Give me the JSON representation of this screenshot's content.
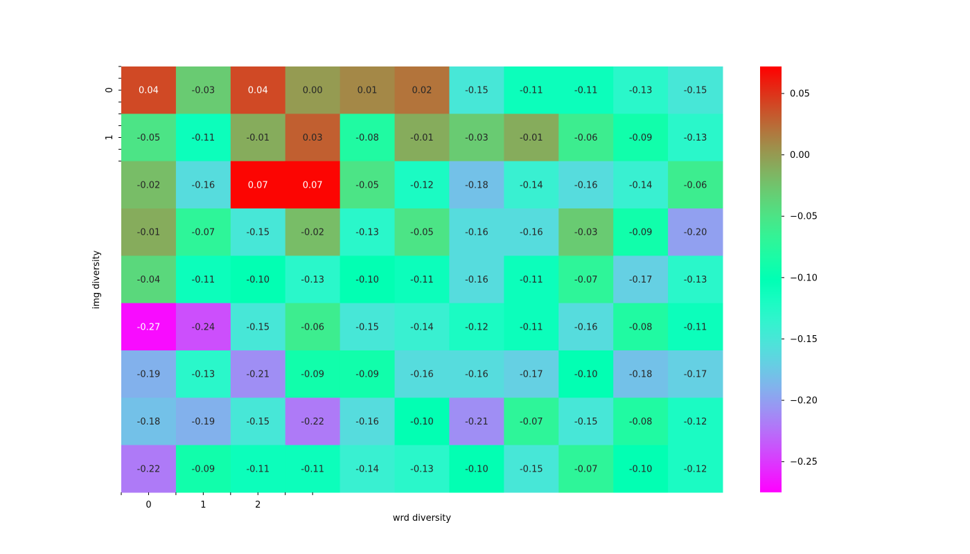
{
  "chart_data": {
    "type": "heatmap",
    "title": "",
    "xlabel": "wrd diversity",
    "ylabel": "img diversity",
    "x_tick_labels": [
      "0",
      "1",
      "2"
    ],
    "y_tick_labels": [
      "0",
      "1"
    ],
    "colormap": "rainbow",
    "value_range": [
      -0.275,
      0.072
    ],
    "colorbar_ticks": [
      "0.05",
      "0.00",
      "−0.05",
      "−0.10",
      "−0.15",
      "−0.20",
      "−0.25"
    ],
    "colorbar_tick_values": [
      0.05,
      0.0,
      -0.05,
      -0.1,
      -0.15,
      -0.2,
      -0.25
    ],
    "rows": 9,
    "cols": 11,
    "values": [
      [
        0.04,
        -0.03,
        0.04,
        0.0,
        0.01,
        0.02,
        -0.15,
        -0.11,
        -0.11,
        -0.13,
        -0.15
      ],
      [
        -0.05,
        -0.11,
        -0.01,
        0.03,
        -0.08,
        -0.01,
        -0.03,
        -0.01,
        -0.06,
        -0.09,
        -0.13
      ],
      [
        -0.02,
        -0.16,
        0.07,
        0.07,
        -0.05,
        -0.12,
        -0.18,
        -0.14,
        -0.16,
        -0.14,
        -0.06
      ],
      [
        -0.01,
        -0.07,
        -0.15,
        -0.02,
        -0.13,
        -0.05,
        -0.16,
        -0.16,
        -0.03,
        -0.09,
        -0.2
      ],
      [
        -0.04,
        -0.11,
        -0.1,
        -0.13,
        -0.1,
        -0.11,
        -0.16,
        -0.11,
        -0.07,
        -0.17,
        -0.13
      ],
      [
        -0.27,
        -0.24,
        -0.15,
        -0.06,
        -0.15,
        -0.14,
        -0.12,
        -0.11,
        -0.16,
        -0.08,
        -0.11
      ],
      [
        -0.19,
        -0.13,
        -0.21,
        -0.09,
        -0.09,
        -0.16,
        -0.16,
        -0.17,
        -0.1,
        -0.18,
        -0.17
      ],
      [
        -0.18,
        -0.19,
        -0.15,
        -0.22,
        -0.16,
        -0.1,
        -0.21,
        -0.07,
        -0.15,
        -0.08,
        -0.12
      ],
      [
        -0.22,
        -0.09,
        -0.11,
        -0.11,
        -0.14,
        -0.13,
        -0.1,
        -0.15,
        -0.07,
        -0.1,
        -0.12
      ]
    ],
    "cell_labels": [
      [
        "0.04",
        "-0.03",
        "0.04",
        "0.00",
        "0.01",
        "0.02",
        "-0.15",
        "-0.11",
        "-0.11",
        "-0.13",
        "-0.15"
      ],
      [
        "-0.05",
        "-0.11",
        "-0.01",
        "0.03",
        "-0.08",
        "-0.01",
        "-0.03",
        "-0.01",
        "-0.06",
        "-0.09",
        "-0.13"
      ],
      [
        "-0.02",
        "-0.16",
        "0.07",
        "0.07",
        "-0.05",
        "-0.12",
        "-0.18",
        "-0.14",
        "-0.16",
        "-0.14",
        "-0.06"
      ],
      [
        "-0.01",
        "-0.07",
        "-0.15",
        "-0.02",
        "-0.13",
        "-0.05",
        "-0.16",
        "-0.16",
        "-0.03",
        "-0.09",
        "-0.20"
      ],
      [
        "-0.04",
        "-0.11",
        "-0.10",
        "-0.13",
        "-0.10",
        "-0.11",
        "-0.16",
        "-0.11",
        "-0.07",
        "-0.17",
        "-0.13"
      ],
      [
        "-0.27",
        "-0.24",
        "-0.15",
        "-0.06",
        "-0.15",
        "-0.14",
        "-0.12",
        "-0.11",
        "-0.16",
        "-0.08",
        "-0.11"
      ],
      [
        "-0.19",
        "-0.13",
        "-0.21",
        "-0.09",
        "-0.09",
        "-0.16",
        "-0.16",
        "-0.17",
        "-0.10",
        "-0.18",
        "-0.17"
      ],
      [
        "-0.18",
        "-0.19",
        "-0.15",
        "-0.22",
        "-0.16",
        "-0.10",
        "-0.21",
        "-0.07",
        "-0.15",
        "-0.08",
        "-0.12"
      ],
      [
        "-0.22",
        "-0.09",
        "-0.11",
        "-0.11",
        "-0.14",
        "-0.13",
        "-0.10",
        "-0.15",
        "-0.07",
        "-0.10",
        "-0.12"
      ]
    ],
    "grid": false,
    "legend": "colorbar-right"
  }
}
